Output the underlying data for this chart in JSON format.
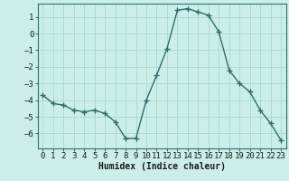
{
  "x": [
    0,
    1,
    2,
    3,
    4,
    5,
    6,
    7,
    8,
    9,
    10,
    11,
    12,
    13,
    14,
    15,
    16,
    17,
    18,
    19,
    20,
    21,
    22,
    23
  ],
  "y": [
    -3.7,
    -4.2,
    -4.3,
    -4.6,
    -4.7,
    -4.6,
    -4.8,
    -5.3,
    -6.3,
    -6.3,
    -4.0,
    -2.5,
    -0.9,
    1.4,
    1.5,
    1.3,
    1.1,
    0.1,
    -2.2,
    -3.0,
    -3.5,
    -4.6,
    -5.4,
    -6.4
  ],
  "line_color": "#2d6e6e",
  "marker": "+",
  "markersize": 4,
  "linewidth": 1.0,
  "bg_color": "#cceee8",
  "grid_color": "#a8d8d0",
  "xlabel": "Humidex (Indice chaleur)",
  "xlabel_fontsize": 7,
  "tick_fontsize": 6.5,
  "ylim": [
    -6.9,
    1.8
  ],
  "xlim": [
    -0.5,
    23.5
  ],
  "yticks": [
    1,
    0,
    -1,
    -2,
    -3,
    -4,
    -5,
    -6
  ],
  "xticks": [
    0,
    1,
    2,
    3,
    4,
    5,
    6,
    7,
    8,
    9,
    10,
    11,
    12,
    13,
    14,
    15,
    16,
    17,
    18,
    19,
    20,
    21,
    22,
    23
  ]
}
